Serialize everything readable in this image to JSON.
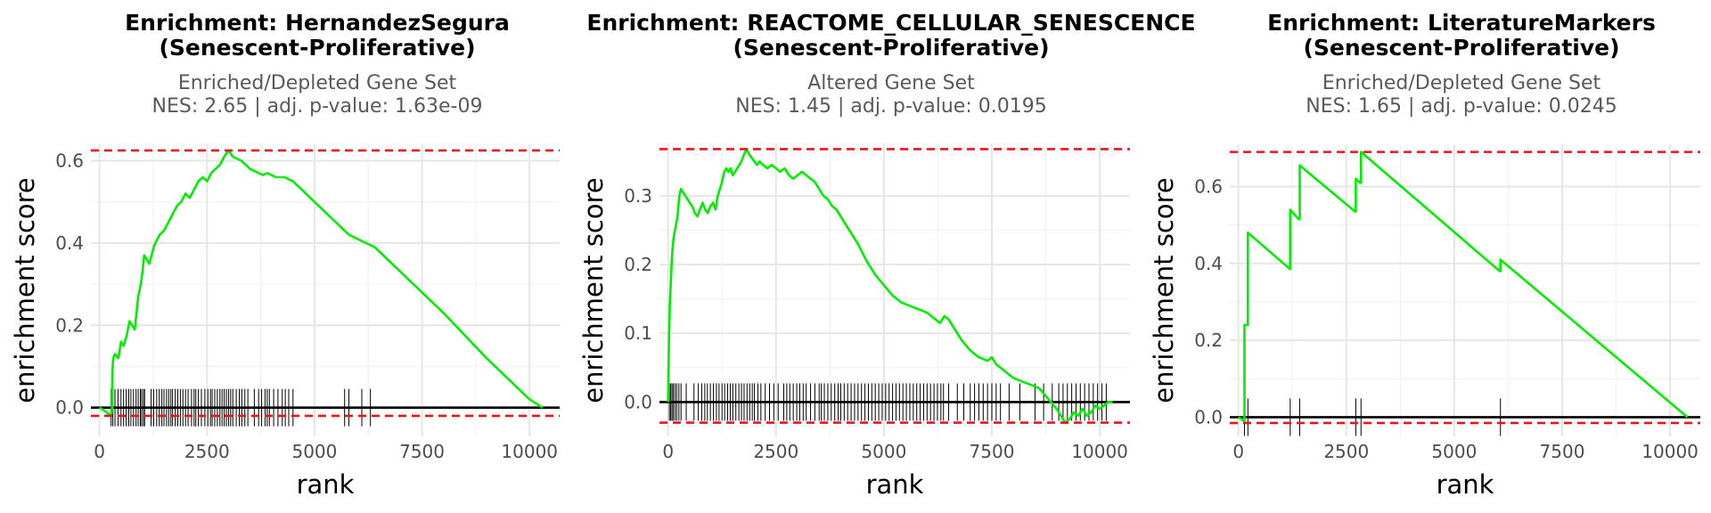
{
  "chart_data": [
    {
      "type": "line",
      "title": "Enrichment: HernandezSegura",
      "title_line2": "(Senescent-Proliferative)",
      "subtitle": "Enriched/Depleted Gene Set",
      "stats": "NES: 2.65 | adj. p-value: 1.63e-09",
      "xlabel": "rank",
      "ylabel": "enrichment score",
      "xlim": [
        -200,
        10700
      ],
      "ylim": [
        -0.07,
        0.64
      ],
      "xticks": [
        0,
        2500,
        5000,
        7500,
        10000
      ],
      "xtick_labels": [
        "0",
        "2500",
        "5000",
        "7500",
        "10000"
      ],
      "yticks": [
        0.0,
        0.2,
        0.4,
        0.6
      ],
      "ytick_labels": [
        "0.0",
        "0.2",
        "0.4",
        "0.6"
      ],
      "max_es": 0.625,
      "min_es": -0.02,
      "line_color": "#00ee00",
      "dashed_color": "#e8161b",
      "series": [
        {
          "x": [
            0,
            150,
            260,
            290,
            300,
            320,
            360,
            440,
            500,
            560,
            620,
            700,
            760,
            820,
            860,
            900,
            960,
            1000,
            1040,
            1100,
            1160,
            1260,
            1300,
            1400,
            1500,
            1600,
            1700,
            1800,
            1900,
            2000,
            2100,
            2200,
            2300,
            2400,
            2500,
            2600,
            2700,
            2800,
            2900,
            3000,
            3100,
            3300,
            3500,
            3700,
            3800,
            3900,
            4000,
            4100,
            4200,
            4300,
            4500,
            4700,
            5000,
            5500,
            5800,
            6000,
            6200,
            6400,
            7000,
            8000,
            9000,
            10000,
            10300
          ],
          "y": [
            0.0,
            -0.01,
            -0.02,
            -0.01,
            0.09,
            0.12,
            0.13,
            0.12,
            0.16,
            0.15,
            0.17,
            0.21,
            0.2,
            0.19,
            0.23,
            0.27,
            0.3,
            0.33,
            0.37,
            0.36,
            0.35,
            0.39,
            0.4,
            0.42,
            0.43,
            0.45,
            0.47,
            0.49,
            0.5,
            0.52,
            0.51,
            0.53,
            0.55,
            0.56,
            0.55,
            0.57,
            0.58,
            0.59,
            0.61,
            0.625,
            0.61,
            0.6,
            0.58,
            0.57,
            0.565,
            0.57,
            0.565,
            0.56,
            0.56,
            0.56,
            0.55,
            0.53,
            0.5,
            0.45,
            0.42,
            0.41,
            0.4,
            0.39,
            0.33,
            0.23,
            0.12,
            0.02,
            0.0
          ]
        }
      ],
      "gene_ranks": [
        270,
        310,
        360,
        430,
        500,
        560,
        620,
        680,
        730,
        790,
        850,
        900,
        950,
        980,
        1020,
        1050,
        1200,
        1260,
        1330,
        1390,
        1450,
        1500,
        1560,
        1610,
        1660,
        1700,
        1760,
        1820,
        1880,
        1940,
        2000,
        2060,
        2140,
        2200,
        2240,
        2300,
        2370,
        2450,
        2520,
        2580,
        2620,
        2680,
        2740,
        2800,
        2850,
        2900,
        2950,
        3000,
        3050,
        3100,
        3180,
        3250,
        3310,
        3380,
        3450,
        3600,
        3700,
        3770,
        3850,
        3900,
        3950,
        4050,
        4150,
        4250,
        4320,
        4400,
        4500,
        5700,
        5800,
        6100,
        6300
      ]
    },
    {
      "type": "line",
      "title": "Enrichment: REACTOME_CELLULAR_SENESCENCE",
      "title_line2": "(Senescent-Proliferative)",
      "subtitle": "Altered Gene Set",
      "stats": "NES: 1.45 | adj. p-value: 0.0195",
      "xlabel": "rank",
      "ylabel": "enrichment score",
      "xlim": [
        -200,
        10700
      ],
      "ylim": [
        -0.05,
        0.375
      ],
      "xticks": [
        0,
        2500,
        5000,
        7500,
        10000
      ],
      "xtick_labels": [
        "0",
        "2500",
        "5000",
        "7500",
        "10000"
      ],
      "yticks": [
        0.0,
        0.1,
        0.2,
        0.3
      ],
      "ytick_labels": [
        "0.0",
        "0.1",
        "0.2",
        "0.3"
      ],
      "max_es": 0.368,
      "min_es": -0.03,
      "line_color": "#00ee00",
      "dashed_color": "#e8161b",
      "series": [
        {
          "x": [
            0,
            20,
            40,
            60,
            80,
            100,
            130,
            160,
            190,
            220,
            260,
            300,
            350,
            400,
            450,
            500,
            560,
            620,
            680,
            740,
            800,
            860,
            920,
            980,
            1040,
            1100,
            1150,
            1200,
            1250,
            1300,
            1350,
            1400,
            1450,
            1500,
            1550,
            1600,
            1650,
            1700,
            1760,
            1820,
            1880,
            1940,
            2000,
            2060,
            2120,
            2200,
            2300,
            2400,
            2500,
            2600,
            2700,
            2800,
            2900,
            3000,
            3100,
            3200,
            3300,
            3400,
            3500,
            3600,
            3700,
            3800,
            3900,
            4000,
            4200,
            4400,
            4600,
            4800,
            5000,
            5200,
            5400,
            5600,
            5800,
            6000,
            6200,
            6300,
            6400,
            6500,
            6600,
            6800,
            7000,
            7200,
            7400,
            7500,
            7600,
            7800,
            8000,
            8200,
            8400,
            8600,
            8800,
            9000,
            9100,
            9200,
            9300,
            9400,
            9500,
            9600,
            9700,
            9800,
            9900,
            10000,
            10100,
            10200,
            10300
          ],
          "y": [
            0.0,
            0.09,
            0.14,
            0.17,
            0.2,
            0.22,
            0.24,
            0.25,
            0.26,
            0.27,
            0.3,
            0.31,
            0.305,
            0.3,
            0.295,
            0.29,
            0.285,
            0.275,
            0.27,
            0.28,
            0.29,
            0.28,
            0.275,
            0.285,
            0.29,
            0.28,
            0.3,
            0.31,
            0.32,
            0.335,
            0.34,
            0.335,
            0.34,
            0.33,
            0.335,
            0.34,
            0.345,
            0.35,
            0.36,
            0.368,
            0.36,
            0.355,
            0.35,
            0.345,
            0.35,
            0.345,
            0.34,
            0.345,
            0.34,
            0.335,
            0.34,
            0.33,
            0.325,
            0.33,
            0.335,
            0.33,
            0.325,
            0.32,
            0.31,
            0.3,
            0.295,
            0.285,
            0.28,
            0.27,
            0.25,
            0.23,
            0.205,
            0.185,
            0.17,
            0.155,
            0.145,
            0.14,
            0.135,
            0.13,
            0.12,
            0.115,
            0.125,
            0.12,
            0.11,
            0.09,
            0.075,
            0.065,
            0.06,
            0.065,
            0.055,
            0.045,
            0.035,
            0.03,
            0.025,
            0.02,
            0.005,
            -0.01,
            -0.02,
            -0.03,
            -0.025,
            -0.015,
            -0.02,
            -0.01,
            -0.02,
            -0.015,
            -0.005,
            -0.01,
            -0.005,
            0.0,
            0.0
          ]
        }
      ],
      "gene_ranks": [
        30,
        60,
        90,
        120,
        160,
        200,
        250,
        300,
        420,
        600,
        700,
        780,
        850,
        910,
        980,
        1050,
        1120,
        1180,
        1250,
        1310,
        1380,
        1440,
        1500,
        1570,
        1640,
        1700,
        1760,
        1830,
        1890,
        1950,
        2000,
        2080,
        2150,
        2250,
        2350,
        2450,
        2550,
        2680,
        2750,
        2820,
        2900,
        2980,
        3050,
        3130,
        3200,
        3300,
        3400,
        3500,
        3550,
        3620,
        3700,
        3780,
        3860,
        3940,
        4000,
        4080,
        4160,
        4240,
        4320,
        4400,
        4480,
        4560,
        4640,
        4720,
        4800,
        4880,
        4960,
        5040,
        5120,
        5200,
        5280,
        5360,
        5440,
        5520,
        5600,
        5680,
        5760,
        5840,
        5920,
        6000,
        6080,
        6160,
        6240,
        6320,
        6380,
        6500,
        6700,
        6850,
        7000,
        7100,
        7200,
        7300,
        7400,
        7500,
        7600,
        7700,
        7900,
        8150,
        8500,
        8700,
        8900,
        9050,
        9150,
        9250,
        9350,
        9450,
        9550,
        9650,
        9750,
        9850,
        9950,
        10050,
        10150
      ]
    },
    {
      "type": "line",
      "title": "Enrichment: LiteratureMarkers",
      "title_line2": "(Senescent-Proliferative)",
      "subtitle": "Enriched/Depleted Gene Set",
      "stats": "NES: 1.65 | adj. p-value: 0.0245",
      "xlabel": "rank",
      "ylabel": "enrichment score",
      "xlim": [
        -200,
        10700
      ],
      "ylim": [
        -0.05,
        0.71
      ],
      "xticks": [
        0,
        2500,
        5000,
        7500,
        10000
      ],
      "xtick_labels": [
        "0",
        "2500",
        "5000",
        "7500",
        "10000"
      ],
      "yticks": [
        0.0,
        0.2,
        0.4,
        0.6
      ],
      "ytick_labels": [
        "0.0",
        "0.2",
        "0.4",
        "0.6"
      ],
      "max_es": 0.69,
      "min_es": -0.015,
      "line_color": "#00ee00",
      "dashed_color": "#e8161b",
      "series": [
        {
          "x": [
            0,
            130,
            140,
            140,
            210,
            220,
            220,
            1200,
            1200,
            1400,
            1420,
            1420,
            2700,
            2720,
            2720,
            2820,
            2840,
            2840,
            6050,
            6070,
            6070,
            10400
          ],
          "y": [
            0.0,
            -0.01,
            -0.01,
            0.24,
            0.24,
            0.24,
            0.48,
            0.385,
            0.54,
            0.515,
            0.515,
            0.655,
            0.535,
            0.535,
            0.62,
            0.61,
            0.61,
            0.69,
            0.38,
            0.38,
            0.41,
            0.0
          ]
        }
      ],
      "gene_ranks": [
        140,
        220,
        1200,
        1420,
        2720,
        2840,
        6070
      ]
    }
  ]
}
